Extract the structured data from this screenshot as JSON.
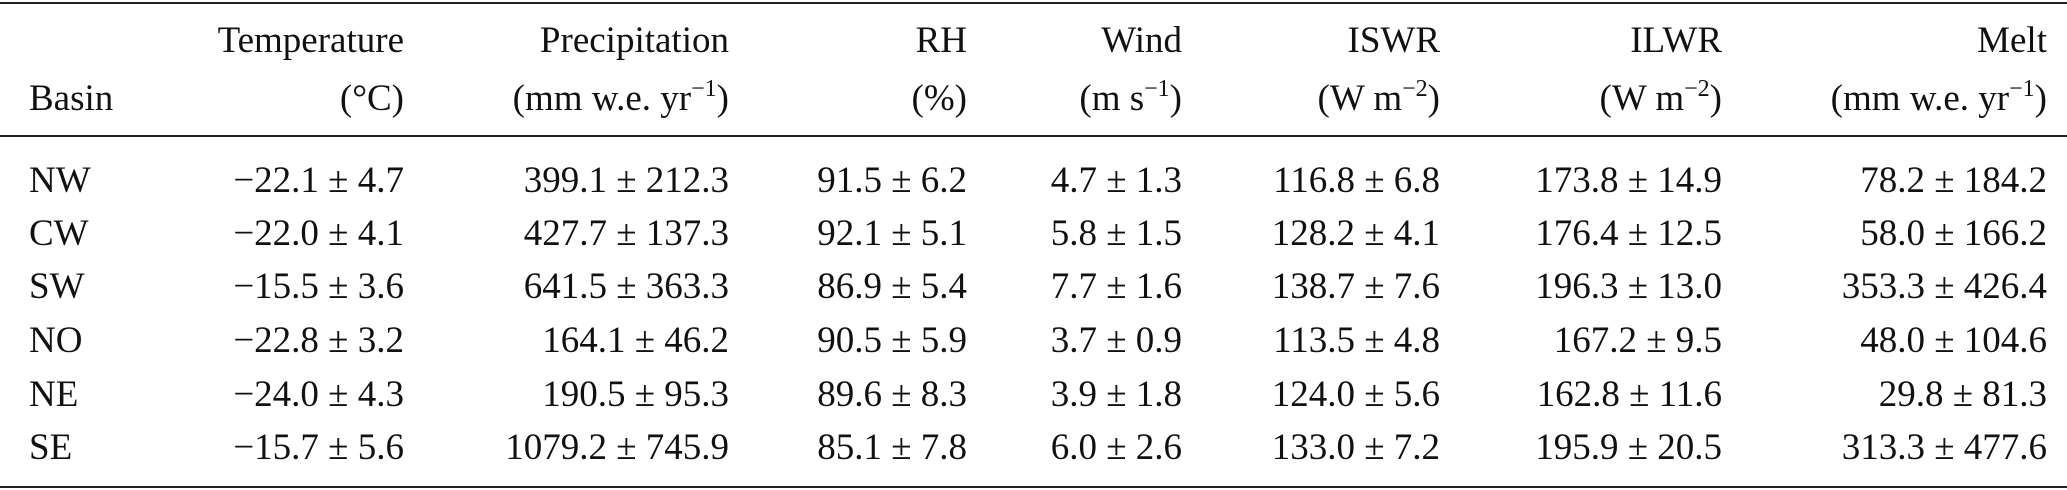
{
  "table": {
    "header": [
      {
        "name": "Basin",
        "unit": []
      },
      {
        "name": "Temperature",
        "unit": [
          "(°C)"
        ]
      },
      {
        "name": "Precipitation",
        "unit": [
          "(mm w.e. yr",
          "−1",
          ")"
        ]
      },
      {
        "name": "RH",
        "unit": [
          "(%)"
        ]
      },
      {
        "name": "Wind",
        "unit": [
          "(m s",
          "−1",
          ")"
        ]
      },
      {
        "name": "ISWR",
        "unit": [
          "(W m",
          "−2",
          ")"
        ]
      },
      {
        "name": "ILWR",
        "unit": [
          "(W m",
          "−2",
          ")"
        ]
      },
      {
        "name": "Melt",
        "unit": [
          "(mm w.e. yr",
          "−1",
          ")"
        ]
      }
    ],
    "rows": [
      [
        "NW",
        "−22.1 ± 4.7",
        "399.1 ± 212.3",
        "91.5 ± 6.2",
        "4.7 ± 1.3",
        "116.8 ± 6.8",
        "173.8 ± 14.9",
        "78.2 ± 184.2"
      ],
      [
        "CW",
        "−22.0 ± 4.1",
        "427.7 ± 137.3",
        "92.1 ± 5.1",
        "5.8 ± 1.5",
        "128.2 ± 4.1",
        "176.4 ± 12.5",
        "58.0 ± 166.2"
      ],
      [
        "SW",
        "−15.5 ± 3.6",
        "641.5 ± 363.3",
        "86.9 ± 5.4",
        "7.7 ± 1.6",
        "138.7 ± 7.6",
        "196.3 ± 13.0",
        "353.3 ± 426.4"
      ],
      [
        "NO",
        "−22.8 ± 3.2",
        "164.1 ± 46.2",
        "90.5 ± 5.9",
        "3.7 ± 0.9",
        "113.5 ± 4.8",
        "167.2 ± 9.5",
        "48.0 ± 104.6"
      ],
      [
        "NE",
        "−24.0 ± 4.3",
        "190.5 ± 95.3",
        "89.6 ± 8.3",
        "3.9 ± 1.8",
        "124.0 ± 5.6",
        "162.8 ± 11.6",
        "29.8 ± 81.3"
      ],
      [
        "SE",
        "−15.7 ± 5.6",
        "1079.2 ± 745.9",
        "85.1 ± 7.8",
        "6.0 ± 2.6",
        "133.0 ± 7.2",
        "195.9 ± 20.5",
        "313.3 ± 477.6"
      ]
    ]
  }
}
